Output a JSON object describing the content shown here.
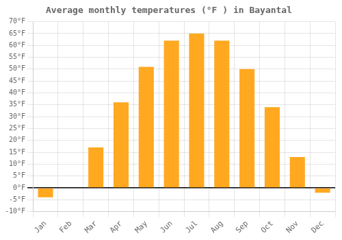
{
  "chart_data": {
    "type": "bar",
    "title": "Average monthly temperatures (°F ) in Bayantal",
    "categories": [
      "Jan",
      "Feb",
      "Mar",
      "Apr",
      "May",
      "Jun",
      "Jul",
      "Aug",
      "Sep",
      "Oct",
      "Nov",
      "Dec"
    ],
    "values": [
      -4,
      0,
      17,
      36,
      51,
      62,
      65,
      62,
      50,
      34,
      13,
      -2
    ],
    "color": "#FFA820",
    "ylim": [
      -10,
      70
    ],
    "yticks": [
      {
        "value": -10,
        "label": "-10°F"
      },
      {
        "value": -5,
        "label": "-5°F"
      },
      {
        "value": 0,
        "label": "0°F"
      },
      {
        "value": 5,
        "label": "5°F"
      },
      {
        "value": 10,
        "label": "10°F"
      },
      {
        "value": 15,
        "label": "15°F"
      },
      {
        "value": 20,
        "label": "20°F"
      },
      {
        "value": 25,
        "label": "25°F"
      },
      {
        "value": 30,
        "label": "30°F"
      },
      {
        "value": 35,
        "label": "35°F"
      },
      {
        "value": 40,
        "label": "40°F"
      },
      {
        "value": 45,
        "label": "45°F"
      },
      {
        "value": 50,
        "label": "50°F"
      },
      {
        "value": 55,
        "label": "55°F"
      },
      {
        "value": 60,
        "label": "60°F"
      },
      {
        "value": 65,
        "label": "65°F"
      },
      {
        "value": 70,
        "label": "70°F"
      }
    ],
    "grid": true
  }
}
